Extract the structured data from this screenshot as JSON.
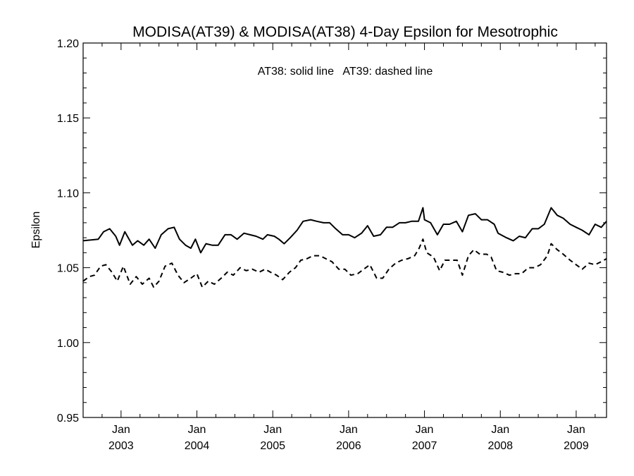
{
  "chart_data": {
    "type": "line",
    "title": "MODISA(AT39) & MODISA(AT38) 4-Day Epsilon for Mesotrophic",
    "annotation": "AT38: solid line   AT39: dashed line",
    "xlabel": "",
    "ylabel": "Epsilon",
    "ylim": [
      0.95,
      1.2
    ],
    "yticks": [
      "0.95",
      "1.00",
      "1.05",
      "1.10",
      "1.15",
      "1.20"
    ],
    "xlim": [
      2002.5,
      2009.4
    ],
    "xticks": [
      {
        "value": 2003.0,
        "month": "Jan",
        "year": "2003"
      },
      {
        "value": 2004.0,
        "month": "Jan",
        "year": "2004"
      },
      {
        "value": 2005.0,
        "month": "Jan",
        "year": "2005"
      },
      {
        "value": 2006.0,
        "month": "Jan",
        "year": "2006"
      },
      {
        "value": 2007.0,
        "month": "Jan",
        "year": "2007"
      },
      {
        "value": 2008.0,
        "month": "Jan",
        "year": "2008"
      },
      {
        "value": 2009.0,
        "month": "Jan",
        "year": "2009"
      }
    ],
    "grid": false,
    "series": [
      {
        "name": "AT38",
        "style": "solid",
        "points": [
          [
            2002.5,
            1.068
          ],
          [
            2002.7,
            1.069
          ],
          [
            2002.77,
            1.074
          ],
          [
            2002.85,
            1.076
          ],
          [
            2002.93,
            1.071
          ],
          [
            2002.98,
            1.065
          ],
          [
            2003.05,
            1.074
          ],
          [
            2003.15,
            1.065
          ],
          [
            2003.22,
            1.068
          ],
          [
            2003.3,
            1.065
          ],
          [
            2003.37,
            1.069
          ],
          [
            2003.45,
            1.063
          ],
          [
            2003.53,
            1.072
          ],
          [
            2003.62,
            1.076
          ],
          [
            2003.7,
            1.077
          ],
          [
            2003.77,
            1.069
          ],
          [
            2003.85,
            1.065
          ],
          [
            2003.92,
            1.063
          ],
          [
            2003.98,
            1.069
          ],
          [
            2004.05,
            1.06
          ],
          [
            2004.12,
            1.066
          ],
          [
            2004.2,
            1.065
          ],
          [
            2004.28,
            1.065
          ],
          [
            2004.37,
            1.072
          ],
          [
            2004.45,
            1.072
          ],
          [
            2004.53,
            1.069
          ],
          [
            2004.62,
            1.073
          ],
          [
            2004.7,
            1.072
          ],
          [
            2004.78,
            1.071
          ],
          [
            2004.87,
            1.069
          ],
          [
            2004.93,
            1.072
          ],
          [
            2005.02,
            1.071
          ],
          [
            2005.08,
            1.069
          ],
          [
            2005.15,
            1.066
          ],
          [
            2005.23,
            1.07
          ],
          [
            2005.32,
            1.075
          ],
          [
            2005.4,
            1.081
          ],
          [
            2005.5,
            1.082
          ],
          [
            2005.58,
            1.081
          ],
          [
            2005.67,
            1.08
          ],
          [
            2005.75,
            1.08
          ],
          [
            2005.83,
            1.076
          ],
          [
            2005.92,
            1.072
          ],
          [
            2006.0,
            1.072
          ],
          [
            2006.08,
            1.07
          ],
          [
            2006.17,
            1.073
          ],
          [
            2006.25,
            1.078
          ],
          [
            2006.33,
            1.071
          ],
          [
            2006.42,
            1.072
          ],
          [
            2006.5,
            1.077
          ],
          [
            2006.58,
            1.077
          ],
          [
            2006.67,
            1.08
          ],
          [
            2006.75,
            1.08
          ],
          [
            2006.83,
            1.081
          ],
          [
            2006.92,
            1.081
          ],
          [
            2006.98,
            1.09
          ],
          [
            2007.0,
            1.082
          ],
          [
            2007.08,
            1.08
          ],
          [
            2007.17,
            1.072
          ],
          [
            2007.25,
            1.079
          ],
          [
            2007.33,
            1.079
          ],
          [
            2007.42,
            1.081
          ],
          [
            2007.5,
            1.074
          ],
          [
            2007.58,
            1.085
          ],
          [
            2007.67,
            1.086
          ],
          [
            2007.75,
            1.082
          ],
          [
            2007.83,
            1.082
          ],
          [
            2007.92,
            1.079
          ],
          [
            2007.97,
            1.073
          ],
          [
            2008.08,
            1.07
          ],
          [
            2008.17,
            1.068
          ],
          [
            2008.25,
            1.071
          ],
          [
            2008.33,
            1.07
          ],
          [
            2008.42,
            1.076
          ],
          [
            2008.5,
            1.076
          ],
          [
            2008.58,
            1.079
          ],
          [
            2008.67,
            1.09
          ],
          [
            2008.75,
            1.085
          ],
          [
            2008.83,
            1.083
          ],
          [
            2008.92,
            1.079
          ],
          [
            2009.0,
            1.077
          ],
          [
            2009.08,
            1.075
          ],
          [
            2009.17,
            1.072
          ],
          [
            2009.25,
            1.079
          ],
          [
            2009.33,
            1.077
          ],
          [
            2009.4,
            1.081
          ]
        ]
      },
      {
        "name": "AT39",
        "style": "dashed",
        "points": [
          [
            2002.5,
            1.041
          ],
          [
            2002.58,
            1.044
          ],
          [
            2002.65,
            1.045
          ],
          [
            2002.73,
            1.051
          ],
          [
            2002.8,
            1.052
          ],
          [
            2002.88,
            1.047
          ],
          [
            2002.95,
            1.041
          ],
          [
            2003.03,
            1.051
          ],
          [
            2003.12,
            1.039
          ],
          [
            2003.2,
            1.044
          ],
          [
            2003.28,
            1.039
          ],
          [
            2003.37,
            1.043
          ],
          [
            2003.43,
            1.037
          ],
          [
            2003.5,
            1.041
          ],
          [
            2003.58,
            1.051
          ],
          [
            2003.67,
            1.053
          ],
          [
            2003.75,
            1.045
          ],
          [
            2003.83,
            1.04
          ],
          [
            2003.92,
            1.043
          ],
          [
            2004.0,
            1.046
          ],
          [
            2004.07,
            1.037
          ],
          [
            2004.15,
            1.041
          ],
          [
            2004.23,
            1.039
          ],
          [
            2004.32,
            1.043
          ],
          [
            2004.4,
            1.047
          ],
          [
            2004.48,
            1.045
          ],
          [
            2004.57,
            1.05
          ],
          [
            2004.65,
            1.048
          ],
          [
            2004.73,
            1.049
          ],
          [
            2004.82,
            1.047
          ],
          [
            2004.9,
            1.049
          ],
          [
            2004.97,
            1.047
          ],
          [
            2005.05,
            1.045
          ],
          [
            2005.13,
            1.042
          ],
          [
            2005.22,
            1.047
          ],
          [
            2005.3,
            1.05
          ],
          [
            2005.37,
            1.055
          ],
          [
            2005.45,
            1.056
          ],
          [
            2005.53,
            1.058
          ],
          [
            2005.62,
            1.058
          ],
          [
            2005.7,
            1.056
          ],
          [
            2005.78,
            1.054
          ],
          [
            2005.87,
            1.049
          ],
          [
            2005.95,
            1.049
          ],
          [
            2006.03,
            1.045
          ],
          [
            2006.12,
            1.046
          ],
          [
            2006.2,
            1.049
          ],
          [
            2006.28,
            1.052
          ],
          [
            2006.37,
            1.043
          ],
          [
            2006.45,
            1.043
          ],
          [
            2006.53,
            1.049
          ],
          [
            2006.62,
            1.053
          ],
          [
            2006.7,
            1.055
          ],
          [
            2006.78,
            1.056
          ],
          [
            2006.87,
            1.058
          ],
          [
            2006.93,
            1.063
          ],
          [
            2006.98,
            1.069
          ],
          [
            2007.03,
            1.06
          ],
          [
            2007.12,
            1.057
          ],
          [
            2007.2,
            1.048
          ],
          [
            2007.27,
            1.055
          ],
          [
            2007.35,
            1.055
          ],
          [
            2007.43,
            1.055
          ],
          [
            2007.5,
            1.045
          ],
          [
            2007.58,
            1.058
          ],
          [
            2007.65,
            1.062
          ],
          [
            2007.73,
            1.059
          ],
          [
            2007.82,
            1.059
          ],
          [
            2007.88,
            1.057
          ],
          [
            2007.95,
            1.048
          ],
          [
            2008.03,
            1.047
          ],
          [
            2008.12,
            1.045
          ],
          [
            2008.2,
            1.046
          ],
          [
            2008.28,
            1.046
          ],
          [
            2008.37,
            1.05
          ],
          [
            2008.45,
            1.05
          ],
          [
            2008.53,
            1.052
          ],
          [
            2008.62,
            1.058
          ],
          [
            2008.67,
            1.066
          ],
          [
            2008.75,
            1.062
          ],
          [
            2008.83,
            1.059
          ],
          [
            2008.92,
            1.055
          ],
          [
            2009.0,
            1.052
          ],
          [
            2009.08,
            1.049
          ],
          [
            2009.17,
            1.053
          ],
          [
            2009.25,
            1.052
          ],
          [
            2009.33,
            1.054
          ],
          [
            2009.4,
            1.056
          ]
        ]
      }
    ]
  }
}
